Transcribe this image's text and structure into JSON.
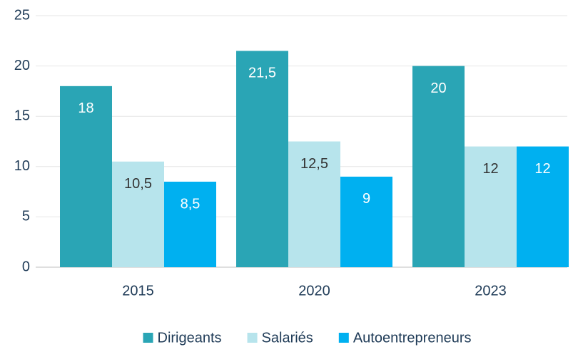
{
  "chart_data": {
    "type": "bar",
    "categories": [
      "2015",
      "2020",
      "2023"
    ],
    "series": [
      {
        "name": "Dirigeants",
        "color": "#2aa5b5",
        "label_color": "#ffffff",
        "values": [
          18,
          21.5,
          20
        ],
        "value_labels": [
          "18",
          "21,5",
          "20"
        ]
      },
      {
        "name": "Salariés",
        "color": "#b7e4ec",
        "label_color": "#333333",
        "values": [
          10.5,
          12.5,
          12
        ],
        "value_labels": [
          "10,5",
          "12,5",
          "12"
        ]
      },
      {
        "name": "Autoentrepreneurs",
        "color": "#00b0f0",
        "label_color": "#ffffff",
        "values": [
          8.5,
          9,
          12
        ],
        "value_labels": [
          "8,5",
          "9",
          "12"
        ]
      }
    ],
    "ylim": [
      0,
      25
    ],
    "yticks": [
      0,
      5,
      10,
      15,
      20,
      25
    ],
    "grid": true,
    "legend": "bottom"
  }
}
